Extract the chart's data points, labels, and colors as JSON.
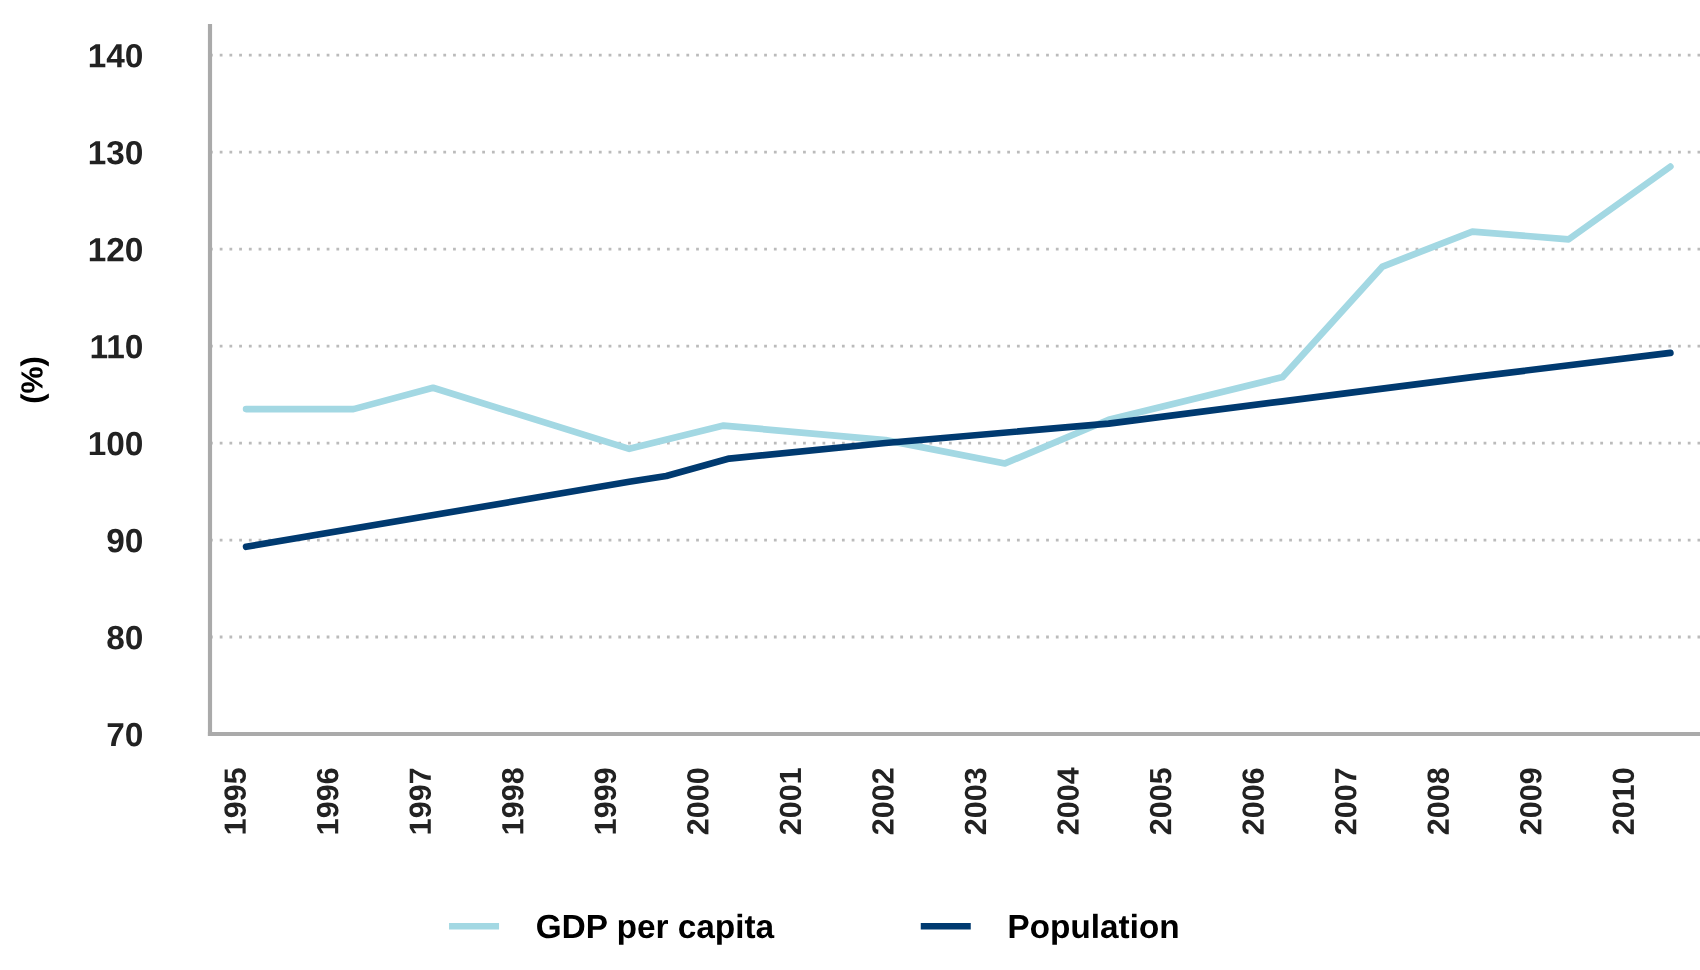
{
  "chart_data": {
    "type": "line",
    "ylabel": "(%)",
    "series": [
      {
        "name": "GDP per capita",
        "color": "#a3d8e3",
        "x": [
          1995.09,
          1996.25,
          1997.11,
          1999.23,
          2000.25,
          2002.0,
          2003.29,
          2004.41,
          2006.29,
          2007.37,
          2008.34,
          2009.38,
          2010.48
        ],
        "values": [
          103.5,
          103.5,
          105.7,
          99.4,
          101.8,
          100.3,
          97.9,
          102.4,
          106.8,
          118.2,
          121.8,
          121.0,
          128.5
        ]
      },
      {
        "name": "Population",
        "color": "#003a70",
        "x": [
          1995.09,
          1999.23,
          1999.63,
          2000.31,
          2002.0,
          2004.41,
          2006.29,
          2008.34,
          2010.48
        ],
        "values": [
          89.3,
          96.0,
          96.6,
          98.4,
          100.0,
          102.0,
          104.3,
          106.8,
          109.3
        ]
      }
    ],
    "xlim": [
      1994.7,
      2010.8
    ],
    "xticks": [
      1995,
      1996,
      1997,
      1998,
      1999,
      2000,
      2001,
      2002,
      2003,
      2004,
      2005,
      2006,
      2007,
      2008,
      2009,
      2010
    ],
    "ylim": [
      70,
      143
    ],
    "yticks": [
      70,
      80,
      90,
      100,
      110,
      120,
      130,
      140
    ],
    "grid": "y",
    "legend": "bottom"
  }
}
